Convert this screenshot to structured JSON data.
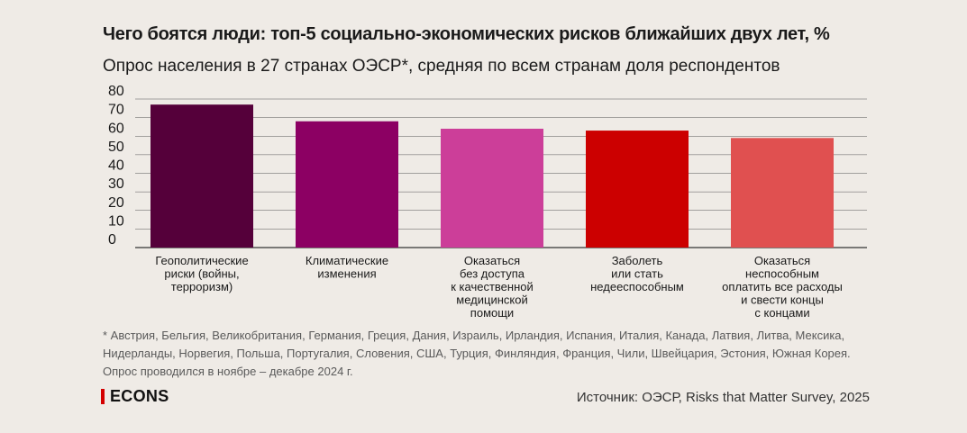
{
  "title": "Чего боятся люди: топ-5 социально-экономических рисков ближайших двух лет, %",
  "subtitle": "Опрос населения в 27 странах ОЭСР*, средняя по всем странам доля респондентов",
  "chart_data": {
    "type": "bar",
    "categories": [
      [
        "Геополитические",
        "риски (войны,",
        "терроризм)"
      ],
      [
        "Климатические",
        "изменения"
      ],
      [
        "Оказаться",
        "без доступа",
        "к качественной",
        "медицинской",
        "помощи"
      ],
      [
        "Заболеть",
        "или стать",
        "недееспособным"
      ],
      [
        "Оказаться",
        "неспособным",
        "оплатить все расходы",
        "и свести концы",
        "с концами"
      ]
    ],
    "values": [
      77,
      68,
      64,
      63,
      59
    ],
    "colors": [
      "#55003a",
      "#8c0063",
      "#cc3e99",
      "#cc0000",
      "#e05050"
    ],
    "ylim": [
      0,
      80
    ],
    "yticks": [
      "0",
      "10",
      "20",
      "30",
      "40",
      "50",
      "60",
      "70",
      "80"
    ],
    "grid": true
  },
  "footnote": "* Австрия, Бельгия, Великобритания, Германия, Греция, Дания, Израиль, Ирландия, Испания, Италия, Канада, Латвия, Литва, Мексика, Нидерланды, Норвегия, Польша, Португалия, Словения, США, Турция, Финляндия, Франция, Чили, Швейцария, Эстония, Южная Корея. Опрос проводился в ноябре – декабре 2024 г.",
  "logo": "ECONS",
  "source": "Источник: ОЭСР, Risks that Matter Survey, 2025",
  "accent_color": "#d40000"
}
